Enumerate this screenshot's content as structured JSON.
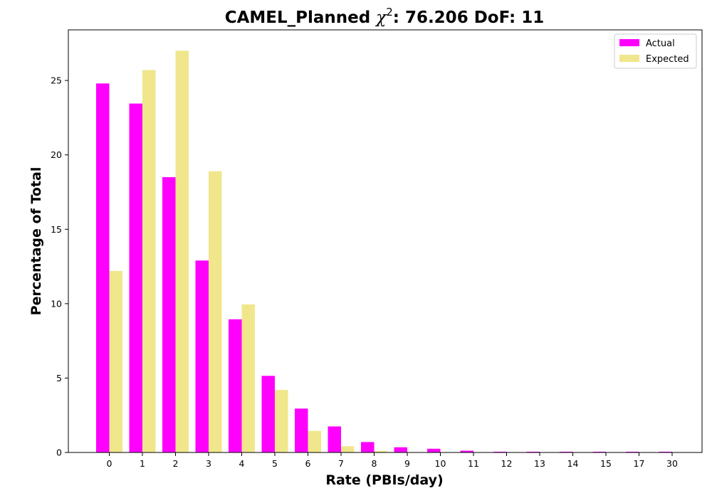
{
  "chart_data": {
    "type": "bar",
    "title": {
      "prefix": "CAMEL_Planned ",
      "chi_symbol": "χ",
      "chi_exponent": "2",
      "suffix": ": 76.206 DoF: 11"
    },
    "xlabel": "Rate (PBIs/day)",
    "ylabel": "Percentage of Total",
    "categories": [
      "0",
      "1",
      "2",
      "3",
      "4",
      "5",
      "6",
      "7",
      "8",
      "9",
      "10",
      "11",
      "12",
      "13",
      "14",
      "15",
      "17",
      "30"
    ],
    "series": [
      {
        "name": "Actual",
        "color": "#ff00ff",
        "values": [
          24.8,
          23.45,
          18.5,
          12.9,
          8.95,
          5.15,
          2.95,
          1.75,
          0.7,
          0.35,
          0.25,
          0.12,
          0.05,
          0.05,
          0.05,
          0.05,
          0.05,
          0.05
        ]
      },
      {
        "name": "Expected",
        "color": "#f0e68c",
        "values": [
          12.2,
          25.7,
          27.0,
          18.9,
          9.95,
          4.2,
          1.45,
          0.42,
          0.1,
          0.02,
          0.0,
          0.0,
          0.0,
          0.0,
          0.0,
          0.0,
          0.0,
          0.0
        ]
      }
    ],
    "ylim": [
      0,
      28.4
    ],
    "yticks": [
      0,
      5,
      10,
      15,
      20,
      25
    ],
    "grid": false,
    "legend_position": "top-right"
  }
}
